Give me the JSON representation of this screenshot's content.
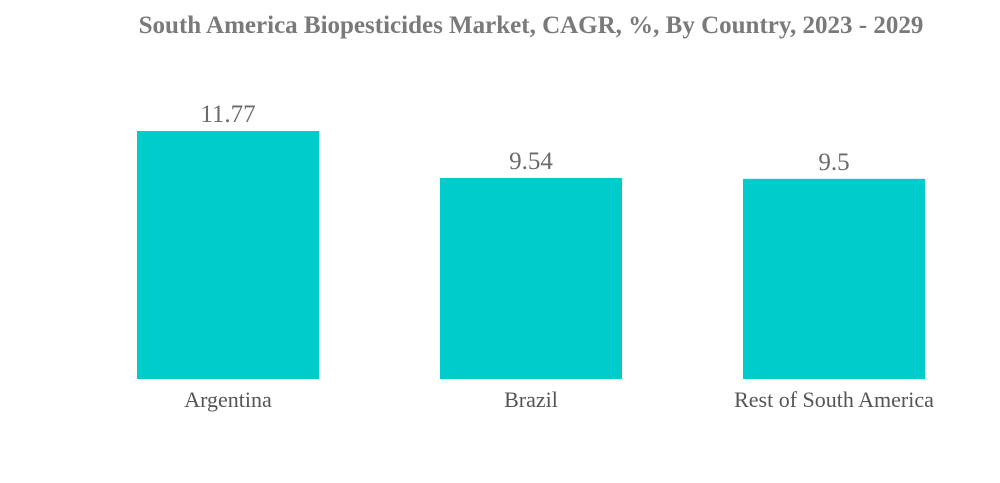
{
  "chart_data": {
    "type": "bar",
    "title": "South America Biopesticides Market, CAGR, %, By Country, 2023 - 2029",
    "categories": [
      "Argentina",
      "Brazil",
      "Rest of South America"
    ],
    "values": [
      11.77,
      9.54,
      9.5
    ],
    "data_labels": [
      "11.77",
      "9.54",
      "9.5"
    ],
    "xlabel": "",
    "ylabel": "",
    "ylim": [
      0,
      11.77
    ],
    "grid": false,
    "legend": "none",
    "bar_color": "#00CCCC"
  }
}
